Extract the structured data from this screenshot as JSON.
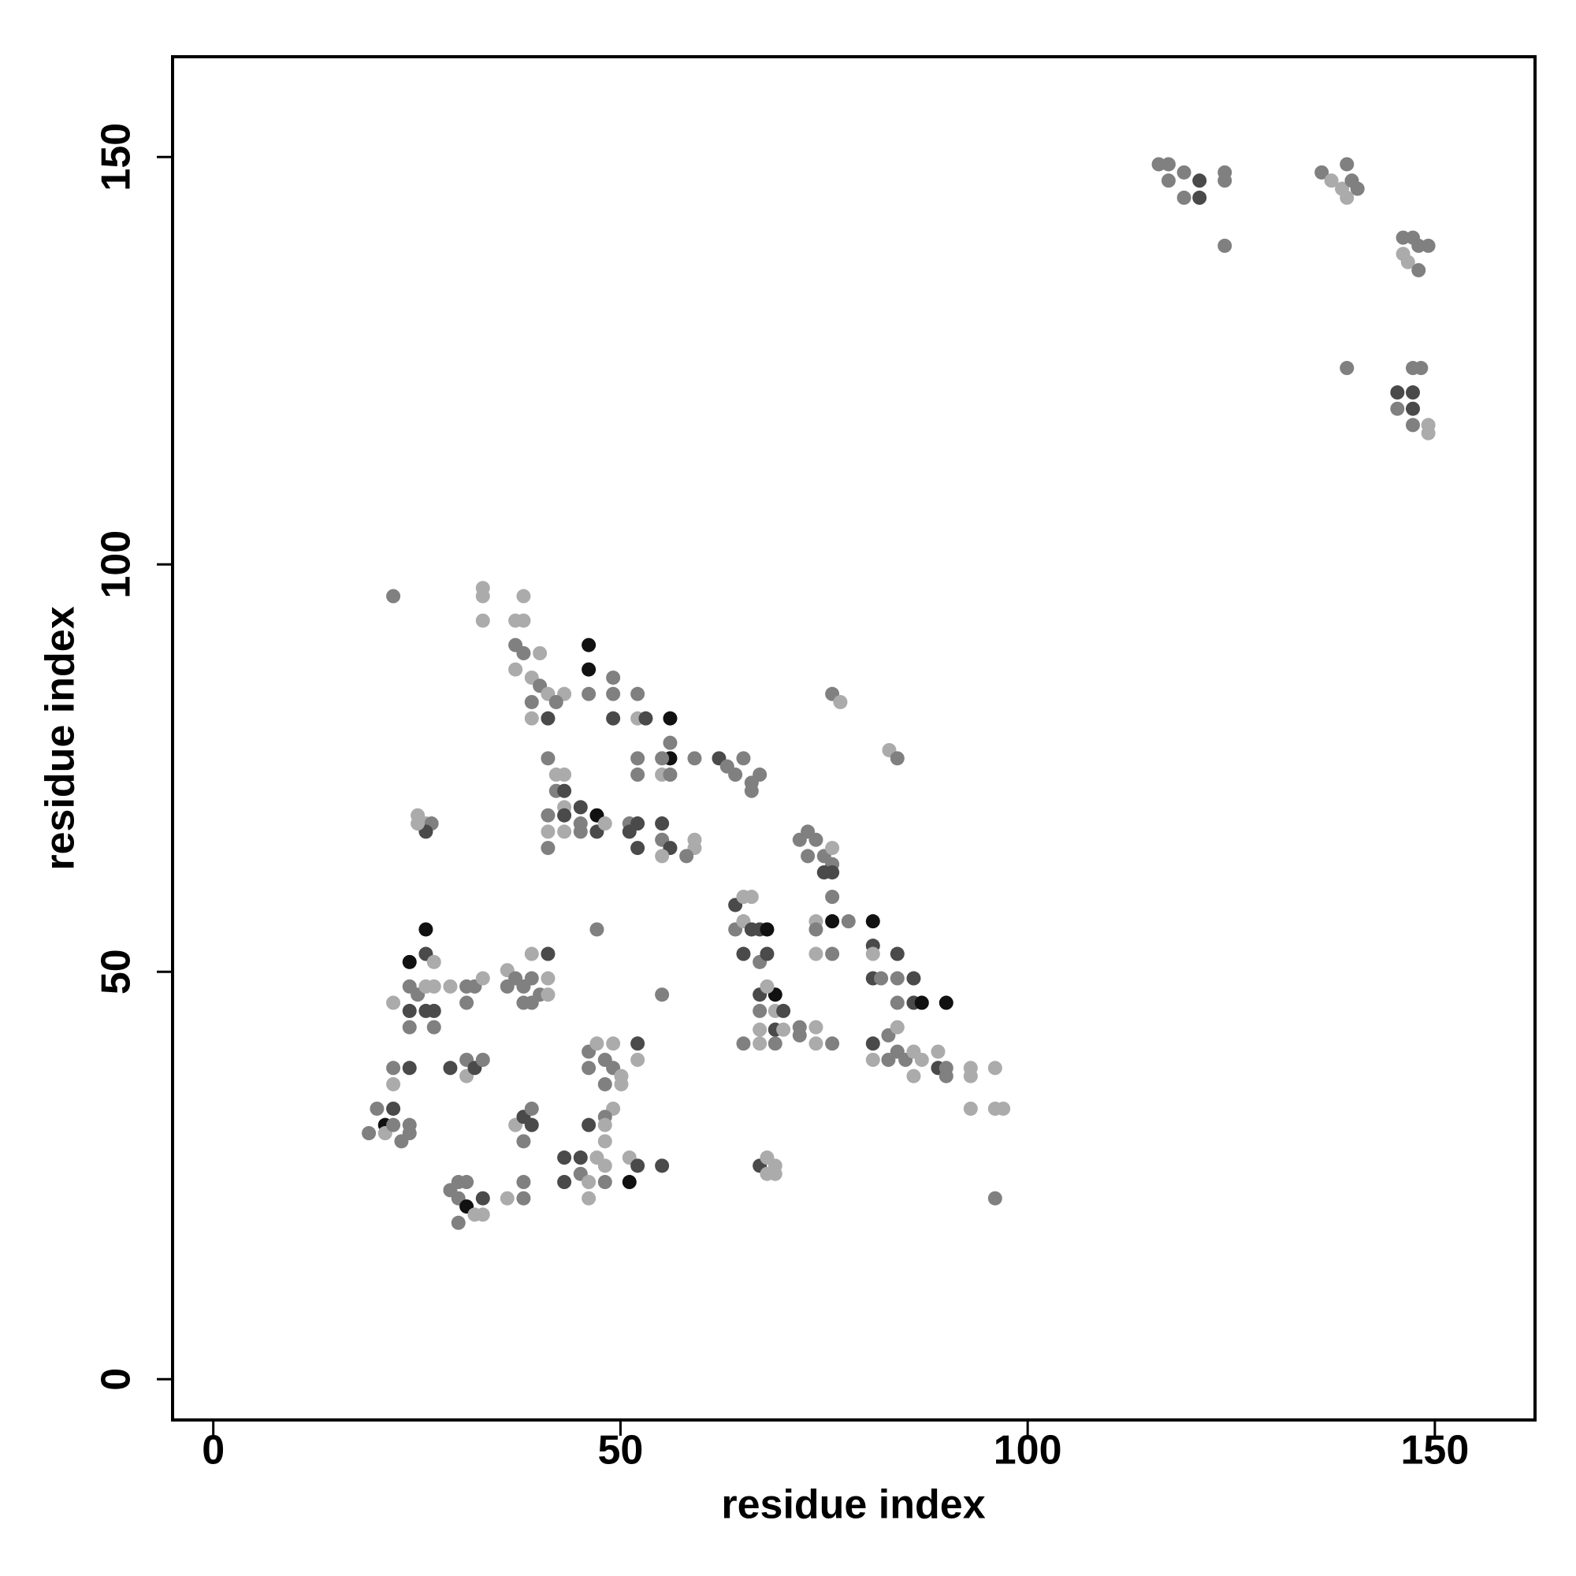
{
  "chart_data": {
    "type": "scatter",
    "xlabel": "residue index",
    "ylabel": "residue index",
    "xlim": [
      -5,
      162.3
    ],
    "ylim": [
      -5,
      162.3
    ],
    "xticks": [
      0,
      50,
      100,
      150
    ],
    "yticks": [
      0,
      50,
      100,
      150
    ],
    "grid": false,
    "x": [
      116.1,
      117.3,
      117.3,
      119.2,
      119.2,
      121.1,
      121.1,
      124.2,
      124.2,
      124.2,
      136.1,
      137.3,
      138.6,
      139.2,
      139.8,
      140.5,
      139.2,
      146.1,
      147.3,
      146.1,
      148,
      149.2,
      146.7,
      148,
      139.2,
      147.3,
      148.3,
      145.4,
      147.3,
      145.4,
      147.3,
      147.3,
      149.2,
      149.2,
      22.1,
      33.1,
      33.1,
      38.1,
      33.1,
      37.1,
      38.1,
      37.1,
      38.1,
      40.1,
      37.1,
      39.1,
      40.1,
      39.1,
      41.1,
      43.1,
      42.1,
      39.1,
      41.1,
      46.1,
      46.1,
      46.1,
      49.1,
      49.1,
      49.1,
      52.1,
      52.1,
      53.1,
      56.1,
      56.1,
      56.1,
      55.1,
      52.1,
      52.1,
      55.1,
      56.1,
      59.1,
      62.1,
      63.1,
      65.1,
      64.1,
      66.1,
      67.1,
      66.1,
      41.1,
      42.1,
      43.1,
      42.1,
      43.1,
      43.1,
      43.1,
      41.1,
      41.1,
      41.1,
      43.1,
      45.1,
      45.1,
      45.1,
      47.1,
      47.1,
      48.1,
      51.1,
      52.1,
      51.1,
      52.1,
      55.1,
      55.1,
      56.1,
      55.1,
      59.1,
      59.1,
      58.1,
      25.1,
      26.1,
      26.8,
      26.1,
      25.1,
      72.0,
      73.0,
      74.0,
      73.0,
      75.0,
      76.0,
      76.0,
      76.0,
      75.0,
      76.0,
      76.0,
      78.0,
      74.0,
      74.0,
      74.0,
      76.0,
      76.0,
      77.0,
      83.0,
      84.0,
      64.1,
      65.1,
      66.1,
      64.1,
      65.1,
      66.1,
      67.1,
      68.0,
      65.1,
      67.1,
      68.0,
      67.1,
      69.0,
      68.0,
      67.1,
      69.0,
      70.0,
      67.1,
      69.0,
      70.0,
      65.1,
      67.1,
      69.0,
      72.0,
      72.0,
      74.0,
      74.0,
      76.0,
      81.0,
      81.0,
      81.0,
      84.0,
      81.0,
      82.0,
      84.0,
      86.0,
      84.0,
      86.0,
      87.0,
      90.0,
      82.9,
      84.0,
      81.0,
      81.0,
      82.9,
      84.0,
      85.0,
      86.0,
      87.0,
      86.0,
      89.0,
      89.0,
      90.0,
      90.0,
      93.0,
      93.0,
      96.0,
      93.0,
      96.0,
      97.0,
      96.0,
      47.1,
      55.1,
      24.1,
      26.1,
      26.1,
      27.1,
      22.1,
      24.1,
      25.1,
      24.1,
      26.1,
      27.1,
      24.1,
      27.1,
      26.1,
      27.1,
      29.1,
      31.1,
      32.1,
      33.1,
      31.1,
      36.1,
      36.1,
      37.1,
      38.1,
      38.1,
      39.1,
      39.1,
      40.1,
      41.1,
      41.1,
      41.1,
      39.1,
      52.1,
      52.1,
      46.1,
      47.1,
      49.1,
      46.1,
      48.1,
      49.1,
      50.1,
      48.1,
      50.1,
      49.1,
      48.1,
      46.1,
      48.1,
      48.1,
      22.1,
      24.1,
      22.1,
      29.1,
      31.1,
      31.1,
      32.1,
      33.1,
      19.1,
      20.1,
      21.1,
      21.1,
      22.1,
      22.1,
      23.1,
      24.1,
      24.1,
      37.1,
      38.1,
      38.1,
      39.1,
      39.1,
      43.1,
      45.1,
      45.1,
      47.1,
      48.1,
      46.1,
      48.1,
      43.1,
      46.1,
      51.1,
      51.1,
      52.1,
      55.1,
      67.1,
      68.0,
      69.0,
      68.0,
      69.0,
      29.1,
      30.1,
      31.1,
      30.1,
      31.1,
      32.1,
      33.1,
      33.1,
      30.1,
      36.1,
      38.1,
      38.1
    ],
    "y": [
      149.1,
      149.1,
      147.1,
      148.1,
      145,
      147.1,
      145,
      148.1,
      147.1,
      139.1,
      148.1,
      147.1,
      146.1,
      149.1,
      147.1,
      146.1,
      145,
      140.1,
      140.1,
      138.1,
      139.1,
      139.1,
      137.1,
      136.1,
      124.1,
      124.1,
      124.1,
      121.1,
      121.1,
      119.1,
      119.1,
      117.1,
      117.1,
      116.1,
      96.1,
      97.1,
      96.1,
      96.1,
      93.1,
      93.1,
      93.1,
      90.1,
      89.1,
      89.1,
      87.1,
      86.1,
      85.1,
      83.1,
      84.1,
      84.1,
      83.1,
      81.1,
      81.1,
      90.1,
      87.1,
      84.1,
      86.1,
      84.1,
      81.1,
      84.1,
      81.1,
      81.1,
      81.1,
      78.1,
      76.2,
      76.2,
      76.2,
      74.2,
      74.2,
      74.2,
      76.2,
      76.2,
      75.2,
      76.2,
      74.2,
      73.2,
      74.2,
      72.2,
      76.2,
      74.2,
      74.2,
      72.2,
      72.2,
      70.2,
      69.2,
      69.2,
      67.2,
      65.2,
      67.2,
      70.2,
      68.2,
      67.2,
      69.2,
      67.2,
      68.2,
      68.2,
      68.2,
      67.2,
      65.2,
      68.2,
      66.2,
      65.2,
      64.2,
      66.2,
      65.2,
      64.2,
      69.2,
      68.2,
      68.2,
      67.2,
      68.2,
      66.2,
      67.2,
      66.2,
      64.2,
      64.2,
      65.2,
      63.2,
      62.2,
      62.2,
      59.2,
      56.2,
      56.2,
      56.2,
      55.2,
      52.2,
      52.2,
      84.1,
      83.1,
      77.2,
      76.2,
      58.2,
      59.2,
      59.2,
      55.2,
      56.2,
      55.2,
      55.2,
      55.2,
      52.2,
      51.2,
      52.2,
      47.2,
      47.2,
      48.2,
      45.2,
      45.2,
      45.2,
      42.9,
      42.9,
      42.9,
      41.2,
      41.2,
      41.2,
      43.2,
      42.2,
      43.2,
      41.2,
      41.2,
      56.2,
      53.2,
      52.2,
      52.2,
      49.2,
      49.2,
      49.2,
      49.2,
      46.2,
      46.2,
      46.2,
      46.2,
      42.2,
      43.2,
      41.2,
      39.2,
      39.2,
      40.2,
      39.2,
      40.2,
      39.2,
      37.2,
      40.2,
      38.2,
      38.2,
      37.2,
      38.2,
      37.2,
      38.2,
      33.2,
      33.2,
      33.2,
      22.2,
      55.2,
      47.2,
      51.2,
      55.2,
      52.2,
      51.2,
      46.2,
      48.2,
      47.2,
      45.2,
      45.2,
      45.2,
      43.2,
      43.2,
      48.2,
      48.2,
      48.2,
      48.2,
      48.2,
      49.2,
      46.2,
      50.2,
      48.2,
      49.2,
      48.2,
      46.2,
      52.2,
      49.2,
      47.2,
      52.2,
      49.2,
      47.2,
      46.2,
      41.2,
      39.2,
      40.2,
      41.2,
      41.2,
      38.2,
      39.2,
      38.2,
      37.2,
      36.2,
      36.2,
      33.2,
      32.2,
      31.2,
      31.2,
      29.2,
      38.2,
      38.2,
      36.2,
      38.2,
      39.2,
      37.2,
      38.2,
      39.2,
      30.2,
      33.2,
      31.2,
      30.2,
      33.2,
      31.2,
      29.2,
      31.2,
      30.2,
      31.2,
      32.2,
      29.2,
      33.2,
      31.2,
      27.2,
      27.2,
      25.2,
      27.2,
      26.2,
      24.2,
      24.2,
      24.2,
      22.2,
      27.2,
      24.2,
      26.2,
      26.2,
      26.2,
      27.2,
      26.2,
      25.2,
      25.2,
      23.2,
      24.2,
      24.2,
      22.2,
      21.2,
      20.2,
      22.2,
      20.2,
      19.2,
      22.2,
      24.2,
      22.2
    ],
    "colors": [
      "#808080",
      "#808080",
      "#808080",
      "#808080",
      "#808080",
      "#4a4a4a",
      "#4a4a4a",
      "#808080",
      "#808080",
      "#808080",
      "#808080",
      "#ababab",
      "#ababab",
      "#808080",
      "#808080",
      "#808080",
      "#ababab",
      "#808080",
      "#808080",
      "#ababab",
      "#808080",
      "#808080",
      "#ababab",
      "#808080",
      "#808080",
      "#808080",
      "#808080",
      "#4a4a4a",
      "#4a4a4a",
      "#808080",
      "#4a4a4a",
      "#808080",
      "#ababab",
      "#ababab",
      "#808080",
      "#ababab",
      "#ababab",
      "#ababab",
      "#ababab",
      "#ababab",
      "#ababab",
      "#808080",
      "#808080",
      "#ababab",
      "#ababab",
      "#ababab",
      "#808080",
      "#808080",
      "#ababab",
      "#ababab",
      "#808080",
      "#ababab",
      "#4a4a4a",
      "#111111",
      "#111111",
      "#808080",
      "#808080",
      "#808080",
      "#4a4a4a",
      "#808080",
      "#ababab",
      "#4a4a4a",
      "#111111",
      "#808080",
      "#111111",
      "#808080",
      "#808080",
      "#808080",
      "#ababab",
      "#808080",
      "#808080",
      "#4a4a4a",
      "#808080",
      "#808080",
      "#808080",
      "#808080",
      "#808080",
      "#808080",
      "#808080",
      "#ababab",
      "#ababab",
      "#808080",
      "#4a4a4a",
      "#ababab",
      "#4a4a4a",
      "#808080",
      "#ababab",
      "#808080",
      "#ababab",
      "#4a4a4a",
      "#808080",
      "#808080",
      "#111111",
      "#4a4a4a",
      "#ababab",
      "#808080",
      "#4a4a4a",
      "#4a4a4a",
      "#4a4a4a",
      "#4a4a4a",
      "#808080",
      "#4a4a4a",
      "#ababab",
      "#ababab",
      "#ababab",
      "#808080",
      "#ababab",
      "#ababab",
      "#808080",
      "#4a4a4a",
      "#ababab",
      "#808080",
      "#808080",
      "#808080",
      "#808080",
      "#808080",
      "#ababab",
      "#808080",
      "#4a4a4a",
      "#4a4a4a",
      "#808080",
      "#111111",
      "#808080",
      "#ababab",
      "#808080",
      "#ababab",
      "#808080",
      "#808080",
      "#ababab",
      "#ababab",
      "#808080",
      "#4a4a4a",
      "#ababab",
      "#ababab",
      "#808080",
      "#ababab",
      "#4a4a4a",
      "#4a4a4a",
      "#111111",
      "#4a4a4a",
      "#808080",
      "#4a4a4a",
      "#4a4a4a",
      "#111111",
      "#ababab",
      "#808080",
      "#ababab",
      "#4a4a4a",
      "#ababab",
      "#4a4a4a",
      "#ababab",
      "#808080",
      "#ababab",
      "#808080",
      "#808080",
      "#808080",
      "#ababab",
      "#ababab",
      "#808080",
      "#111111",
      "#4a4a4a",
      "#ababab",
      "#4a4a4a",
      "#4a4a4a",
      "#808080",
      "#808080",
      "#4a4a4a",
      "#808080",
      "#4a4a4a",
      "#111111",
      "#111111",
      "#808080",
      "#ababab",
      "#4a4a4a",
      "#ababab",
      "#808080",
      "#808080",
      "#808080",
      "#ababab",
      "#ababab",
      "#ababab",
      "#ababab",
      "#4a4a4a",
      "#808080",
      "#808080",
      "#ababab",
      "#ababab",
      "#ababab",
      "#ababab",
      "#ababab",
      "#ababab",
      "#808080",
      "#808080",
      "#808080",
      "#111111",
      "#111111",
      "#4a4a4a",
      "#ababab",
      "#ababab",
      "#808080",
      "#808080",
      "#4a4a4a",
      "#4a4a4a",
      "#4a4a4a",
      "#808080",
      "#808080",
      "#ababab",
      "#ababab",
      "#ababab",
      "#808080",
      "#808080",
      "#ababab",
      "#808080",
      "#ababab",
      "#808080",
      "#808080",
      "#808080",
      "#808080",
      "#ababab",
      "#808080",
      "#808080",
      "#4a4a4a",
      "#ababab",
      "#ababab",
      "#808080",
      "#4a4a4a",
      "#ababab",
      "#808080",
      "#ababab",
      "#ababab",
      "#808080",
      "#808080",
      "#808080",
      "#ababab",
      "#808080",
      "#ababab",
      "#ababab",
      "#808080",
      "#4a4a4a",
      "#ababab",
      "#ababab",
      "#808080",
      "#4a4a4a",
      "#ababab",
      "#4a4a4a",
      "#808080",
      "#ababab",
      "#4a4a4a",
      "#808080",
      "#808080",
      "#808080",
      "#111111",
      "#ababab",
      "#4a4a4a",
      "#808080",
      "#808080",
      "#808080",
      "#808080",
      "#ababab",
      "#4a4a4a",
      "#808080",
      "#808080",
      "#4a4a4a",
      "#4a4a4a",
      "#4a4a4a",
      "#808080",
      "#ababab",
      "#ababab",
      "#ababab",
      "#808080",
      "#4a4a4a",
      "#ababab",
      "#ababab",
      "#111111",
      "#4a4a4a",
      "#4a4a4a",
      "#4a4a4a",
      "#ababab",
      "#ababab",
      "#ababab",
      "#ababab",
      "#808080",
      "#808080",
      "#808080",
      "#808080",
      "#111111",
      "#ababab",
      "#4a4a4a",
      "#ababab",
      "#808080",
      "#ababab",
      "#808080",
      "#808080"
    ]
  }
}
